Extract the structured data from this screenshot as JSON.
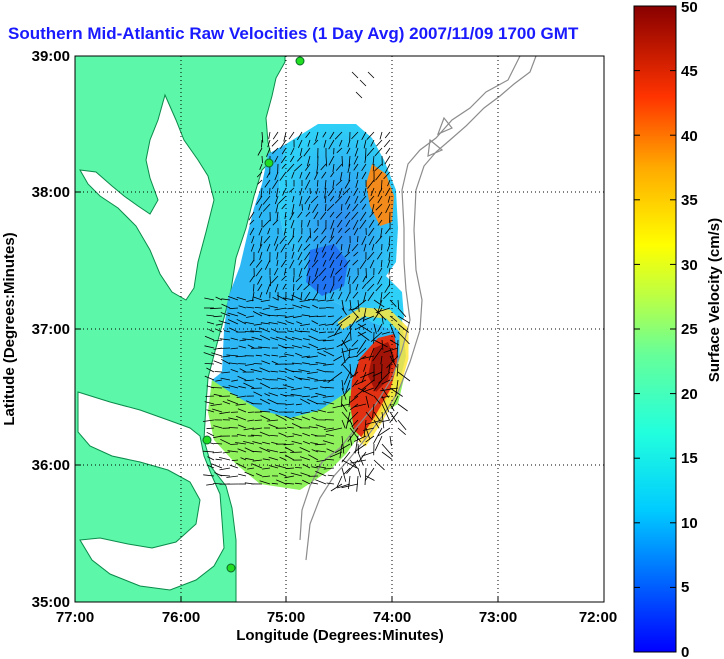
{
  "title": "Southern Mid-Atlantic Raw Velocities (1 Day Avg) 2007/11/09 1700 GMT",
  "axes": {
    "xlabel": "Longitude (Degrees:Minutes)",
    "ylabel": "Latitude (Degrees:Minutes)",
    "x_ticks": [
      "77:00",
      "76:00",
      "75:00",
      "74:00",
      "73:00",
      "72:00"
    ],
    "y_ticks": [
      "39:00",
      "38:00",
      "37:00",
      "36:00",
      "35:00"
    ]
  },
  "colorbar": {
    "label": "Surface Velocity (cm/s)",
    "ticks": [
      "0",
      "5",
      "10",
      "15",
      "20",
      "25",
      "30",
      "35",
      "40",
      "45",
      "50"
    ],
    "min": 0,
    "max": 50,
    "colormap": "jet"
  },
  "colors": {
    "land": "#5cf7a8",
    "coastline": "#0a8a4a",
    "bathymetry": "#8c8c8c",
    "station": "#22dd22",
    "vector": "#000000",
    "title": "#1a1aff"
  },
  "map_extent": {
    "lon": [
      "77:00 W",
      "72:00 W"
    ],
    "lat": [
      "35:00 N",
      "39:00 N"
    ]
  },
  "grid": "dotted"
}
